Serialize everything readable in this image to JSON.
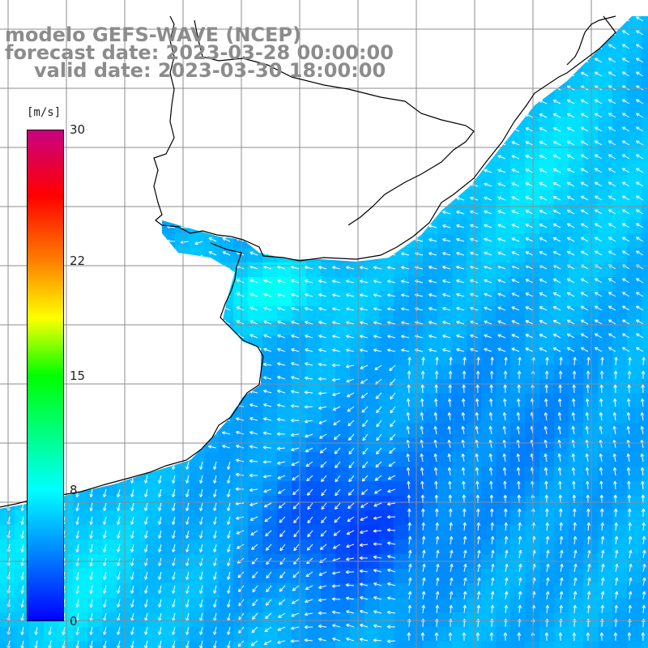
{
  "title": {
    "line1": "modelo GEFS-WAVE (NCEP)",
    "line2": "forecast date: 2023-03-28 00:00:00",
    "line3": "valid date: 2023-03-30 18:00:00"
  },
  "colorbar": {
    "units": "[m/s]",
    "ticks": [
      {
        "label": "30",
        "value": 30
      },
      {
        "label": "22",
        "value": 22
      },
      {
        "label": "15",
        "value": 15
      },
      {
        "label": "8",
        "value": 8
      },
      {
        "label": "0",
        "value": 0
      }
    ],
    "range": [
      0,
      30
    ],
    "stops": [
      {
        "value": 0,
        "color": "#0000ff"
      },
      {
        "value": 4,
        "color": "#0080ff"
      },
      {
        "value": 8,
        "color": "#00ffff"
      },
      {
        "value": 11.5,
        "color": "#00ff80"
      },
      {
        "value": 15,
        "color": "#00ff00"
      },
      {
        "value": 18.5,
        "color": "#ffff00"
      },
      {
        "value": 22,
        "color": "#ff8000"
      },
      {
        "value": 26,
        "color": "#ff0000"
      },
      {
        "value": 30,
        "color": "#c80080"
      }
    ]
  },
  "colors": {
    "land": "#ffffff",
    "coast": "#000000",
    "grid": "#8c8c8c",
    "arrow": "#ffffff",
    "title": "#8c8c8c"
  }
}
